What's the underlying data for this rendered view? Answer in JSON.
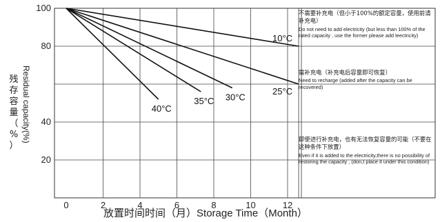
{
  "chart_data": {
    "type": "line",
    "title": "",
    "xlabel_cn": "放置时间时间（月）",
    "xlabel_en": "Storage Time（Month）",
    "ylabel_en": "Residual capacity(%)",
    "ylabel_cn": "残存容量（%）",
    "x_ticks": [
      "0",
      "2",
      "4",
      "6",
      "8",
      "10",
      "12"
    ],
    "y_ticks": [
      "100",
      "80",
      "40",
      "20"
    ],
    "xlim": [
      -0.7,
      22
    ],
    "ylim": [
      0,
      100
    ],
    "grid": true,
    "series": [
      {
        "name": "10°C",
        "x": [
          0,
          12.6
        ],
        "y": [
          100,
          80
        ]
      },
      {
        "name": "25°C",
        "x": [
          0,
          12.6
        ],
        "y": [
          100,
          60
        ]
      },
      {
        "name": "30°C",
        "x": [
          0,
          9.0
        ],
        "y": [
          100,
          58
        ]
      },
      {
        "name": "35°C",
        "x": [
          0,
          7.3
        ],
        "y": [
          100,
          56
        ]
      },
      {
        "name": "40°C",
        "x": [
          0,
          5.0
        ],
        "y": [
          100,
          52
        ]
      }
    ],
    "zones": [
      {
        "cn": "不需要补充电（但小于100%的额定容量，使用前请补充电）",
        "en": "Do not need to add electricity (but less than 100% of the rated capacity , use the former please add leectricity)"
      },
      {
        "cn": "需补充电（补充电后容量即可恢复）",
        "en": "Need to recharge (added after the capacity can be recovered)"
      },
      {
        "cn": "即使进行补充电，也有无法恢复容量的可能（不要在这种条件下放置）",
        "en": "Even if it is added to the electricity,there is no possibility of restoring the capacity , (don,t place it under this condition)"
      }
    ]
  }
}
